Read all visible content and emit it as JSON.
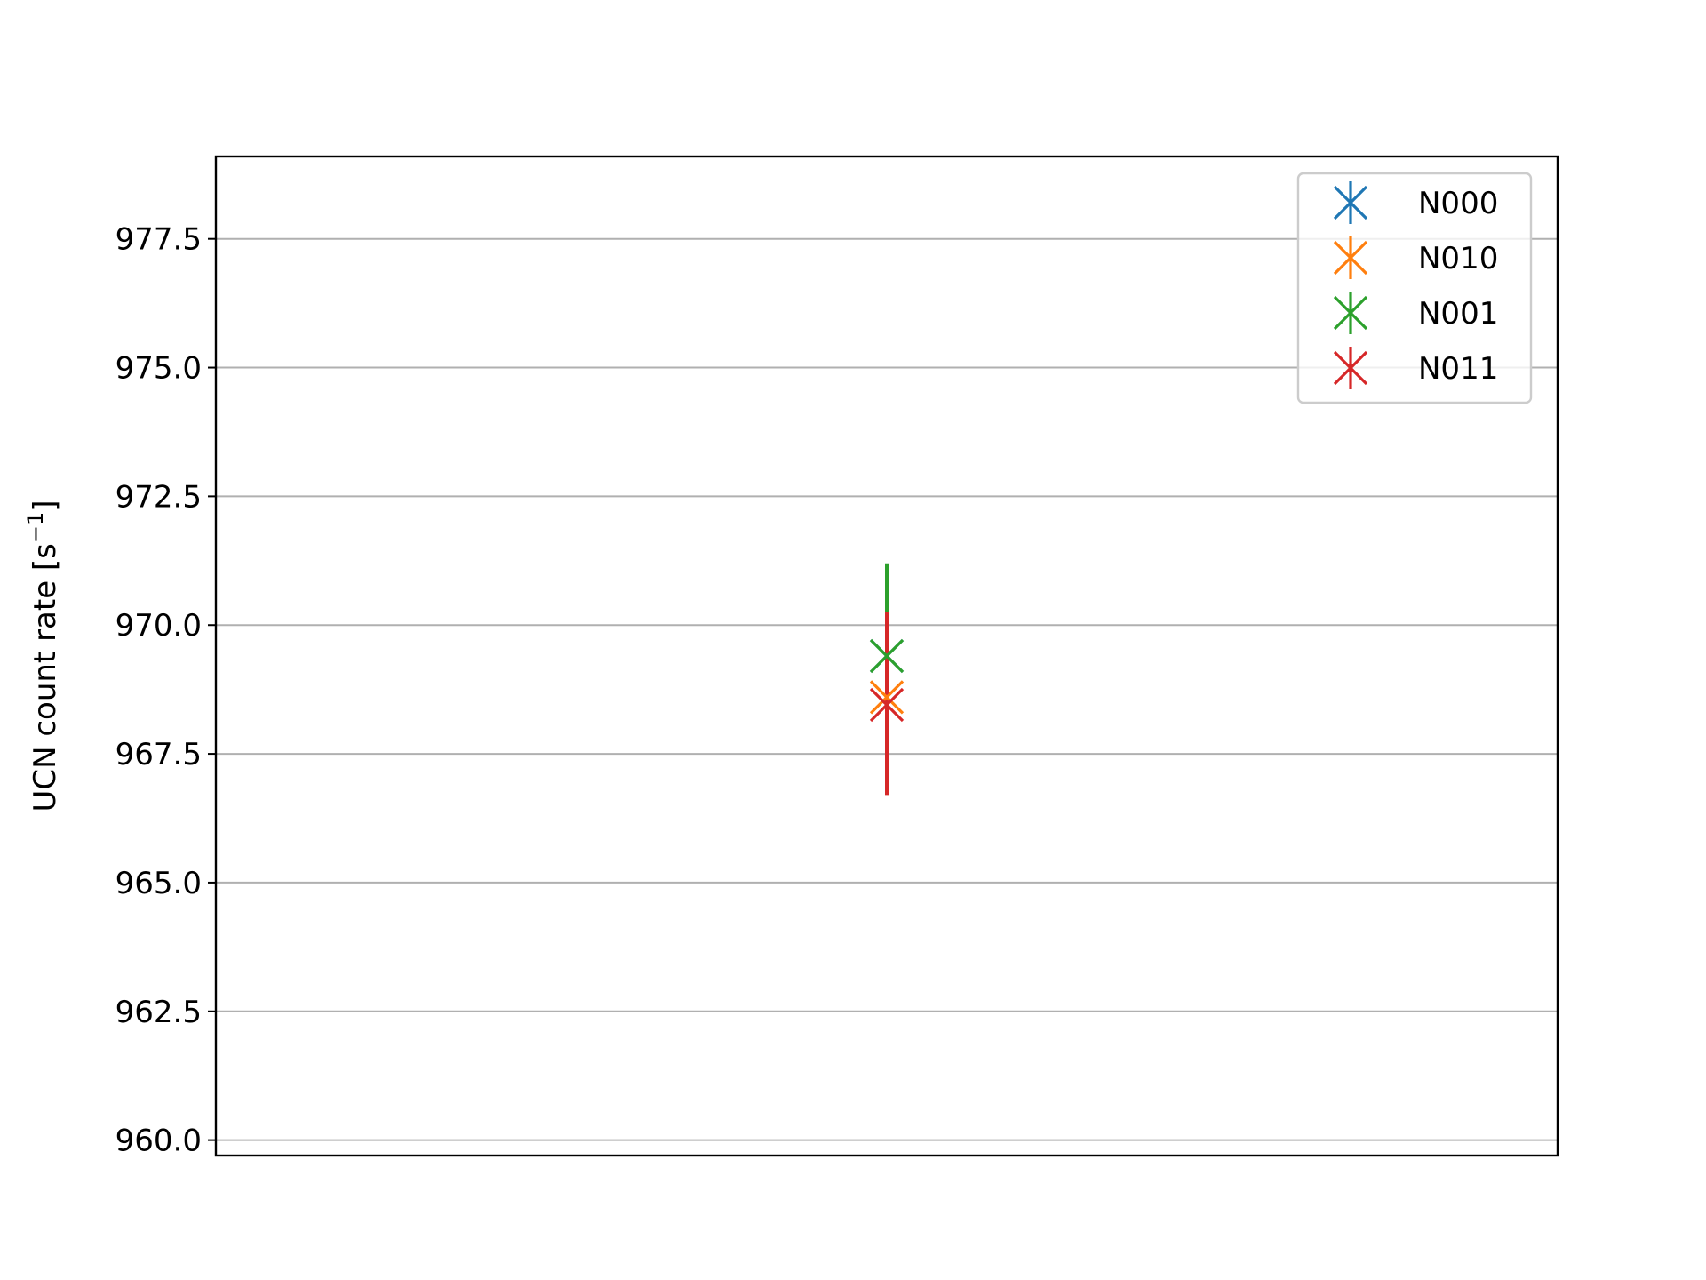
{
  "chart_data": {
    "type": "scatter",
    "title": "",
    "xlabel": "",
    "ylabel": "UCN count rate [s",
    "ylabel_sup": "−1",
    "ylabel_close": "]",
    "ylim": [
      959.7,
      979.1
    ],
    "yticks": [
      960.0,
      962.5,
      965.0,
      967.5,
      970.0,
      972.5,
      975.0,
      977.5
    ],
    "ytick_labels": [
      "960.0",
      "962.5",
      "965.0",
      "967.5",
      "970.0",
      "972.5",
      "975.0",
      "977.5"
    ],
    "xlim": [
      -1,
      1
    ],
    "grid": "horizontal",
    "legend_position": "top-right",
    "x_tick_labels_shown": false,
    "series": [
      {
        "name": "N000",
        "color": "#1f77b4",
        "x": 0,
        "y": 969.4,
        "yerr_low": 969.1,
        "yerr_high": 969.7
      },
      {
        "name": "N010",
        "color": "#ff7f0e",
        "x": 0,
        "y": 968.6,
        "yerr_low": 968.3,
        "yerr_high": 968.9
      },
      {
        "name": "N001",
        "color": "#2ca02c",
        "x": 0,
        "y": 969.4,
        "yerr_low": 967.6,
        "yerr_high": 971.2
      },
      {
        "name": "N011",
        "color": "#d62728",
        "x": 0,
        "y": 968.45,
        "yerr_low": 966.7,
        "yerr_high": 970.25
      }
    ]
  }
}
